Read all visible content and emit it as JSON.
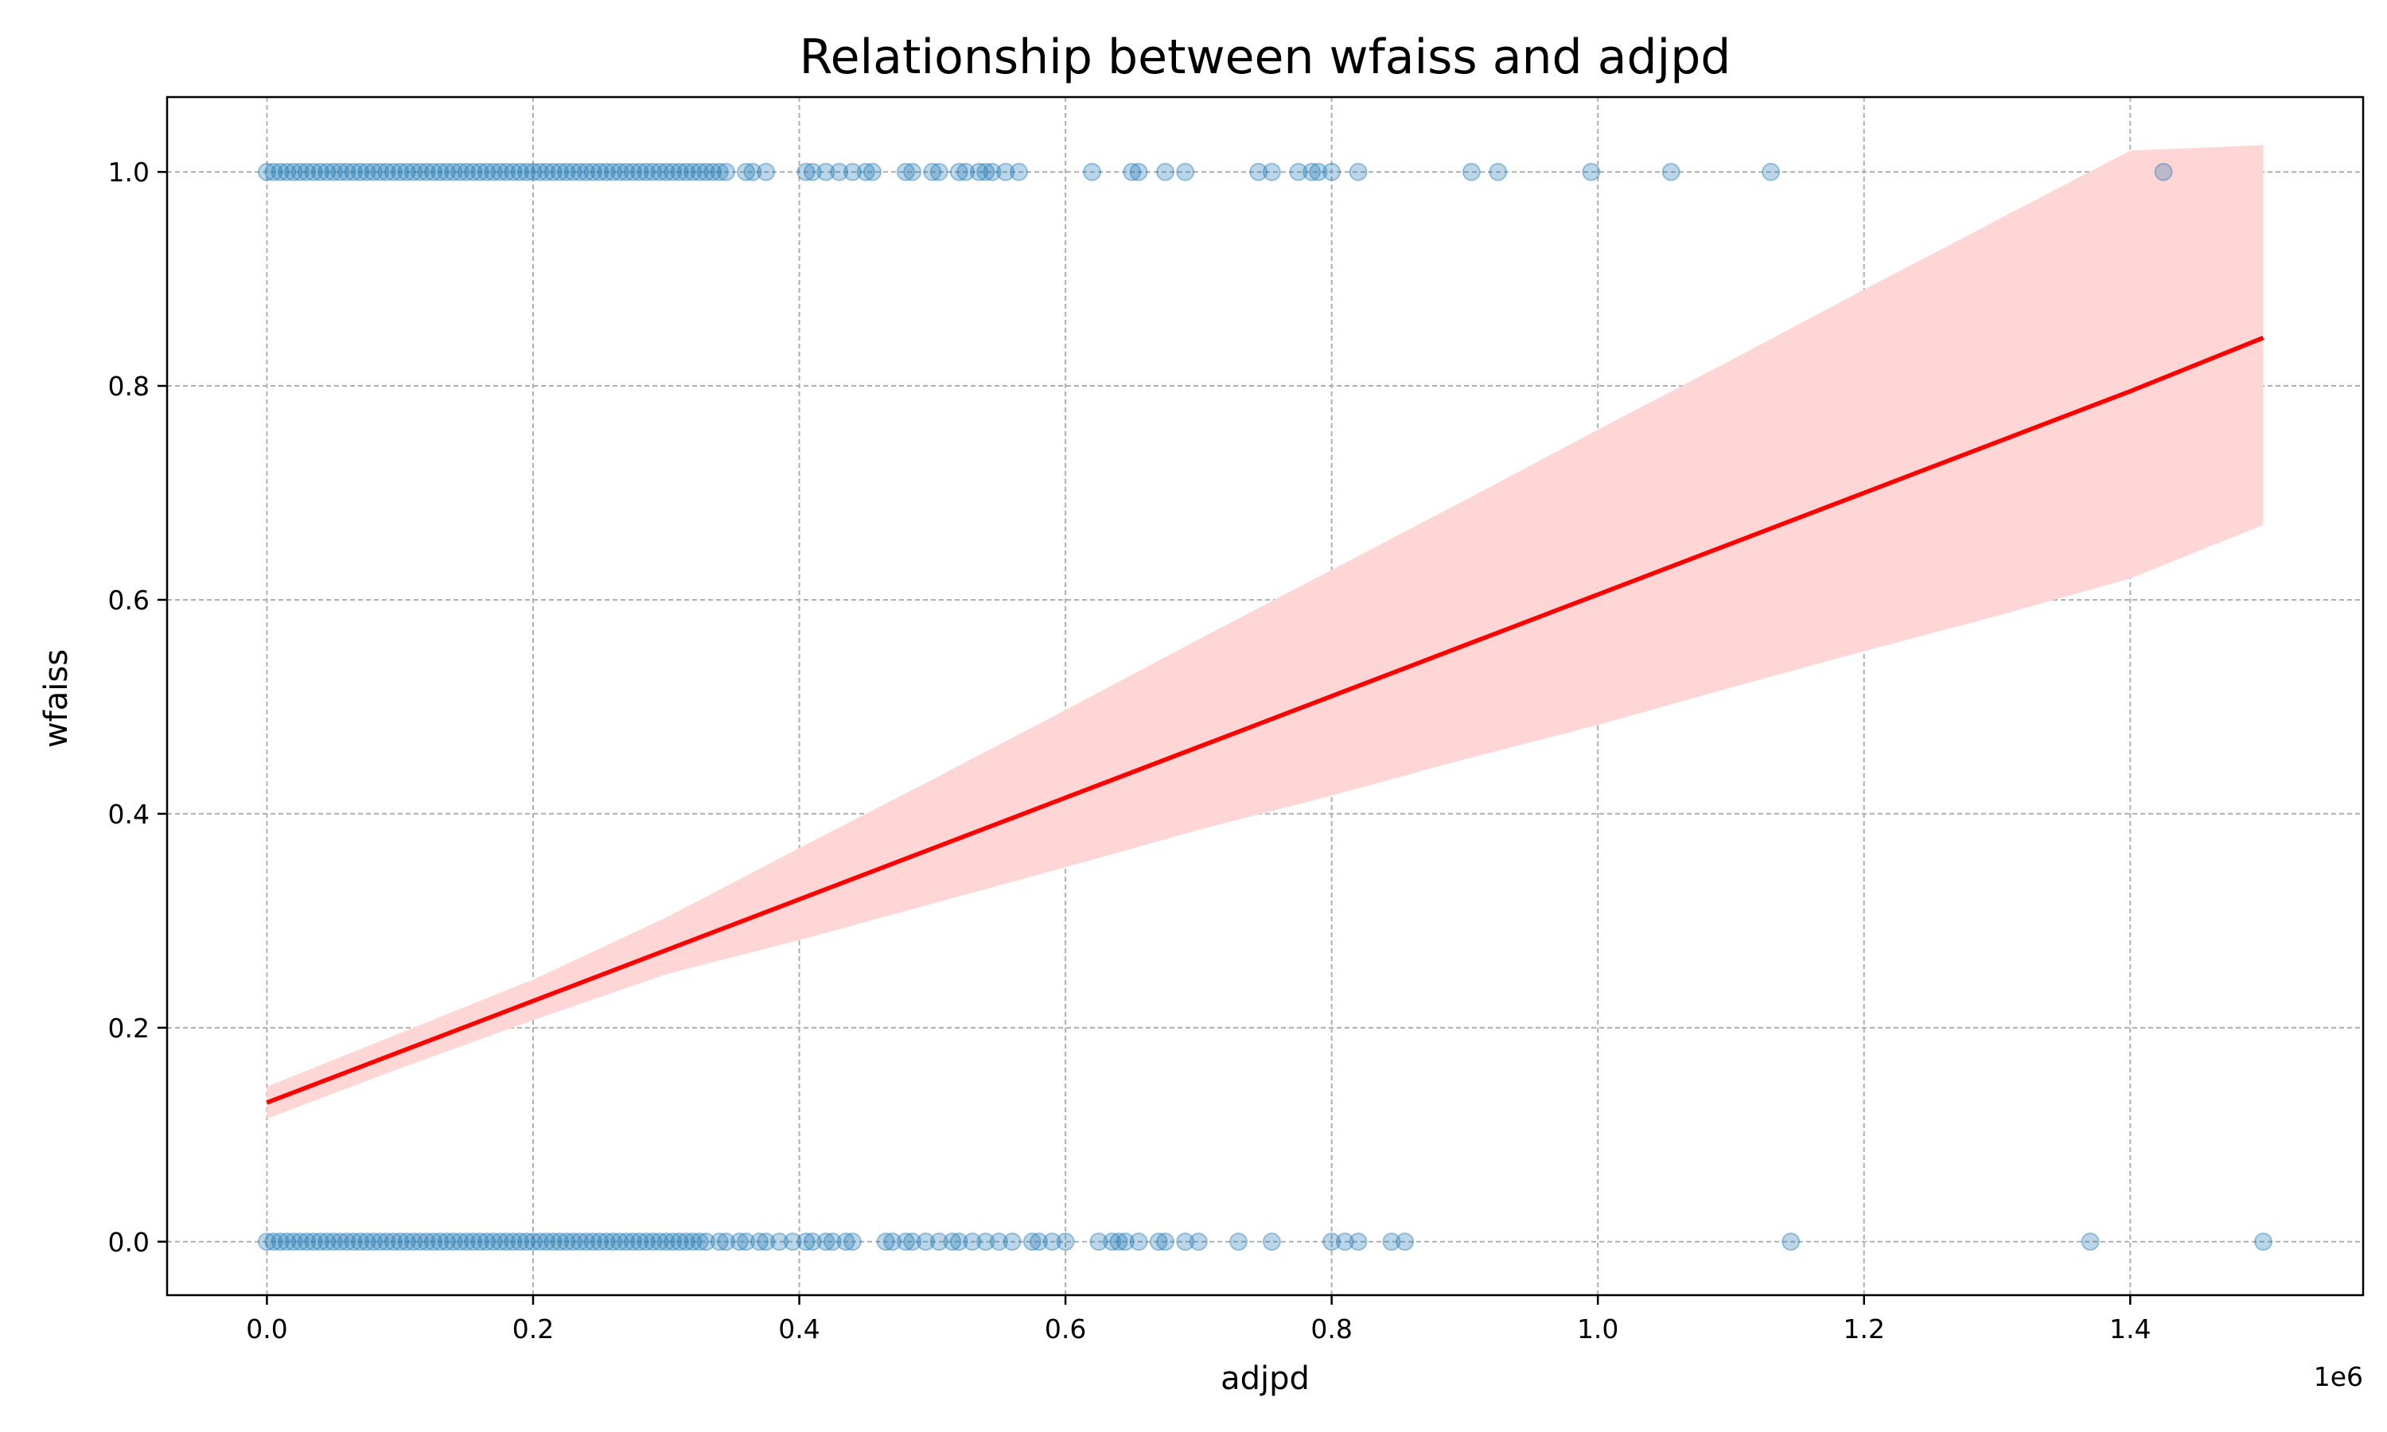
{
  "chart_data": {
    "type": "scatter",
    "title": "Relationship between wfaiss and adjpd",
    "xlabel": "adjpd",
    "ylabel": "wfaiss",
    "x_offset_label": "1e6",
    "x_scale_factor": 1000000,
    "xlim": [
      -75000,
      1575000
    ],
    "ylim": [
      -0.05,
      1.07
    ],
    "x_ticks": [
      0.0,
      0.2,
      0.4,
      0.6,
      0.8,
      1.0,
      1.2,
      1.4
    ],
    "x_tick_labels": [
      "0.0",
      "0.2",
      "0.4",
      "0.6",
      "0.8",
      "1.0",
      "1.2",
      "1.4"
    ],
    "y_ticks": [
      0.0,
      0.2,
      0.4,
      0.6,
      0.8,
      1.0
    ],
    "y_tick_labels": [
      "0.0",
      "0.2",
      "0.4",
      "0.6",
      "0.8",
      "1.0"
    ],
    "grid": true,
    "series": [
      {
        "kind": "scatter",
        "color": "#1f77b4",
        "alpha": 0.3,
        "points_y1": [
          0,
          5000,
          10000,
          15000,
          20000,
          25000,
          30000,
          35000,
          40000,
          45000,
          50000,
          55000,
          60000,
          65000,
          70000,
          75000,
          80000,
          85000,
          90000,
          95000,
          100000,
          105000,
          110000,
          115000,
          120000,
          125000,
          130000,
          135000,
          140000,
          145000,
          150000,
          155000,
          160000,
          165000,
          170000,
          175000,
          180000,
          185000,
          190000,
          195000,
          200000,
          205000,
          210000,
          215000,
          220000,
          225000,
          230000,
          235000,
          240000,
          245000,
          250000,
          255000,
          260000,
          265000,
          270000,
          275000,
          280000,
          285000,
          290000,
          295000,
          300000,
          305000,
          310000,
          315000,
          320000,
          325000,
          330000,
          335000,
          340000,
          345000,
          360000,
          365000,
          375000,
          405000,
          410000,
          420000,
          430000,
          440000,
          450000,
          455000,
          480000,
          485000,
          500000,
          505000,
          520000,
          525000,
          535000,
          540000,
          545000,
          555000,
          565000,
          620000,
          650000,
          655000,
          675000,
          690000,
          745000,
          755000,
          775000,
          785000,
          790000,
          800000,
          820000,
          905000,
          925000,
          995000,
          1055000,
          1130000,
          1425000
        ],
        "points_y0": [
          0,
          5000,
          10000,
          15000,
          20000,
          25000,
          30000,
          35000,
          40000,
          45000,
          50000,
          55000,
          60000,
          65000,
          70000,
          75000,
          80000,
          85000,
          90000,
          95000,
          100000,
          105000,
          110000,
          115000,
          120000,
          125000,
          130000,
          135000,
          140000,
          145000,
          150000,
          155000,
          160000,
          165000,
          170000,
          175000,
          180000,
          185000,
          190000,
          195000,
          200000,
          205000,
          210000,
          215000,
          220000,
          225000,
          230000,
          235000,
          240000,
          245000,
          250000,
          255000,
          260000,
          265000,
          270000,
          275000,
          280000,
          285000,
          290000,
          295000,
          300000,
          305000,
          310000,
          315000,
          320000,
          325000,
          330000,
          340000,
          345000,
          355000,
          360000,
          370000,
          375000,
          385000,
          395000,
          405000,
          410000,
          420000,
          425000,
          435000,
          440000,
          465000,
          470000,
          480000,
          485000,
          495000,
          505000,
          515000,
          520000,
          530000,
          540000,
          550000,
          560000,
          575000,
          580000,
          590000,
          600000,
          625000,
          635000,
          640000,
          645000,
          655000,
          670000,
          675000,
          690000,
          700000,
          730000,
          755000,
          800000,
          810000,
          820000,
          845000,
          855000,
          1145000,
          1370000,
          1500000
        ]
      },
      {
        "kind": "regression",
        "color": "#ff0000",
        "x": [
          0,
          100000,
          200000,
          300000,
          400000,
          500000,
          600000,
          700000,
          800000,
          900000,
          1000000,
          1100000,
          1200000,
          1300000,
          1400000,
          1500000
        ],
        "y": [
          0.13,
          0.1775,
          0.225,
          0.2725,
          0.32,
          0.3675,
          0.415,
          0.4625,
          0.51,
          0.5575,
          0.605,
          0.6525,
          0.7,
          0.7475,
          0.795,
          0.845
        ],
        "ci_upper": [
          0.145,
          0.195,
          0.245,
          0.303,
          0.368,
          0.432,
          0.497,
          0.563,
          0.628,
          0.693,
          0.759,
          0.824,
          0.89,
          0.955,
          1.02,
          1.025
        ],
        "ci_lower": [
          0.115,
          0.162,
          0.207,
          0.25,
          0.282,
          0.316,
          0.35,
          0.385,
          0.417,
          0.451,
          0.483,
          0.518,
          0.552,
          0.585,
          0.62,
          0.67
        ],
        "ci_color": "#ffd6d6"
      }
    ]
  }
}
